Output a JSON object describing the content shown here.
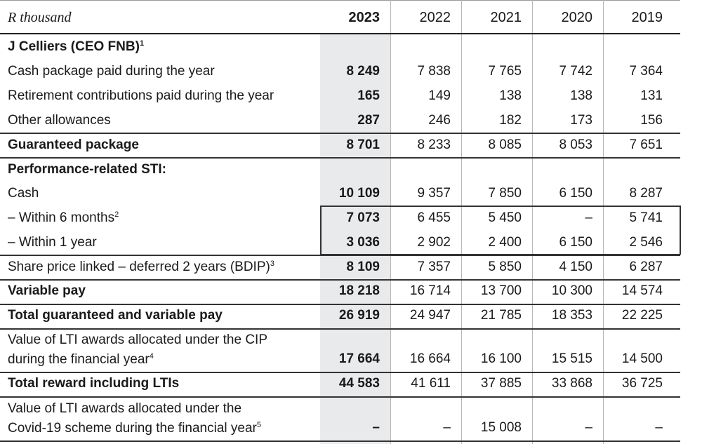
{
  "header": {
    "label": "R thousand",
    "years": [
      "2023",
      "2022",
      "2021",
      "2020",
      "2019"
    ]
  },
  "rows": [
    {
      "label": "J Celliers (CEO FNB)",
      "sup": "1",
      "bold": true,
      "values": [
        "",
        "",
        "",
        "",
        ""
      ]
    },
    {
      "label": "Cash package paid during the year",
      "sup": "",
      "bold": false,
      "values": [
        "8 249",
        "7 838",
        "7 765",
        "7 742",
        "7 364"
      ]
    },
    {
      "label": "Retirement contributions paid during the year",
      "sup": "",
      "bold": false,
      "values": [
        "165",
        "149",
        "138",
        "138",
        "131"
      ]
    },
    {
      "label": "Other allowances",
      "sup": "",
      "bold": false,
      "values": [
        "287",
        "246",
        "182",
        "173",
        "156"
      ]
    },
    {
      "label": "Guaranteed package",
      "sup": "",
      "bold": true,
      "values": [
        "8 701",
        "8 233",
        "8 085",
        "8 053",
        "7 651"
      ]
    },
    {
      "label": "Performance-related STI:",
      "sup": "",
      "bold": true,
      "values": [
        "",
        "",
        "",
        "",
        ""
      ]
    },
    {
      "label": "Cash",
      "sup": "",
      "bold": false,
      "values": [
        "10 109",
        "9 357",
        "7 850",
        "6 150",
        "8 287"
      ]
    },
    {
      "label": "– Within 6 months",
      "sup": "2",
      "bold": false,
      "values": [
        "7 073",
        "6 455",
        "5 450",
        "–",
        "5 741"
      ]
    },
    {
      "label": "– Within 1 year",
      "sup": "",
      "bold": false,
      "values": [
        "3 036",
        "2 902",
        "2 400",
        "6 150",
        "2 546"
      ]
    },
    {
      "label": "Share price linked – deferred 2 years (BDIP)",
      "sup": "3",
      "bold": false,
      "values": [
        "8 109",
        "7 357",
        "5 850",
        "4 150",
        "6 287"
      ]
    },
    {
      "label": "Variable pay",
      "sup": "",
      "bold": true,
      "values": [
        "18 218",
        "16 714",
        "13 700",
        "10 300",
        "14 574"
      ]
    },
    {
      "label": "Total guaranteed and variable pay",
      "sup": "",
      "bold": true,
      "values": [
        "26 919",
        "24 947",
        "21 785",
        "18 353",
        "22 225"
      ]
    },
    {
      "label": "Value of LTI awards allocated under the CIP",
      "label2": "during the financial year",
      "sup": "4",
      "bold": false,
      "values": [
        "17 664",
        "16 664",
        "16 100",
        "15 515",
        "14 500"
      ]
    },
    {
      "label": "Total reward including LTIs",
      "sup": "",
      "bold": true,
      "values": [
        "44 583",
        "41 611",
        "37 885",
        "33 868",
        "36 725"
      ]
    },
    {
      "label": "Value of LTI awards allocated under the",
      "label2": "Covid-19 scheme during the financial year",
      "sup": "5",
      "bold": false,
      "values": [
        "–",
        "–",
        "15 008",
        "–",
        "–"
      ]
    }
  ]
}
